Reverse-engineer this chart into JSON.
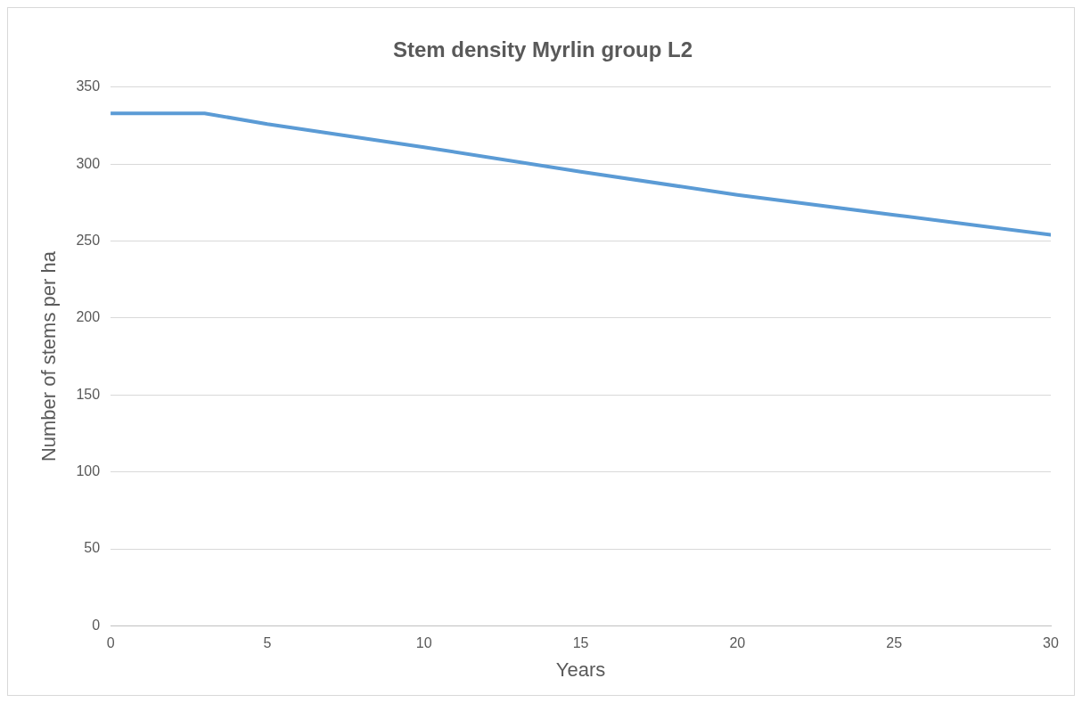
{
  "chart_data": {
    "type": "line",
    "title": "Stem density Myrlin group L2",
    "xlabel": "Years",
    "ylabel": "Number of stems per ha",
    "x": [
      0,
      3,
      5,
      10,
      15,
      20,
      25,
      30
    ],
    "series": [
      {
        "color": "#5b9bd5",
        "values": [
          333,
          333,
          326,
          311,
          295,
          280,
          267,
          254
        ]
      }
    ],
    "xlim": [
      0,
      30
    ],
    "xticks": [
      0,
      5,
      10,
      15,
      20,
      25,
      30
    ],
    "ylim": [
      0,
      350
    ],
    "yticks": [
      0,
      50,
      100,
      150,
      200,
      250,
      300,
      350
    ],
    "grid": "y",
    "legend": false,
    "marker": "none",
    "line_style": "solid"
  }
}
